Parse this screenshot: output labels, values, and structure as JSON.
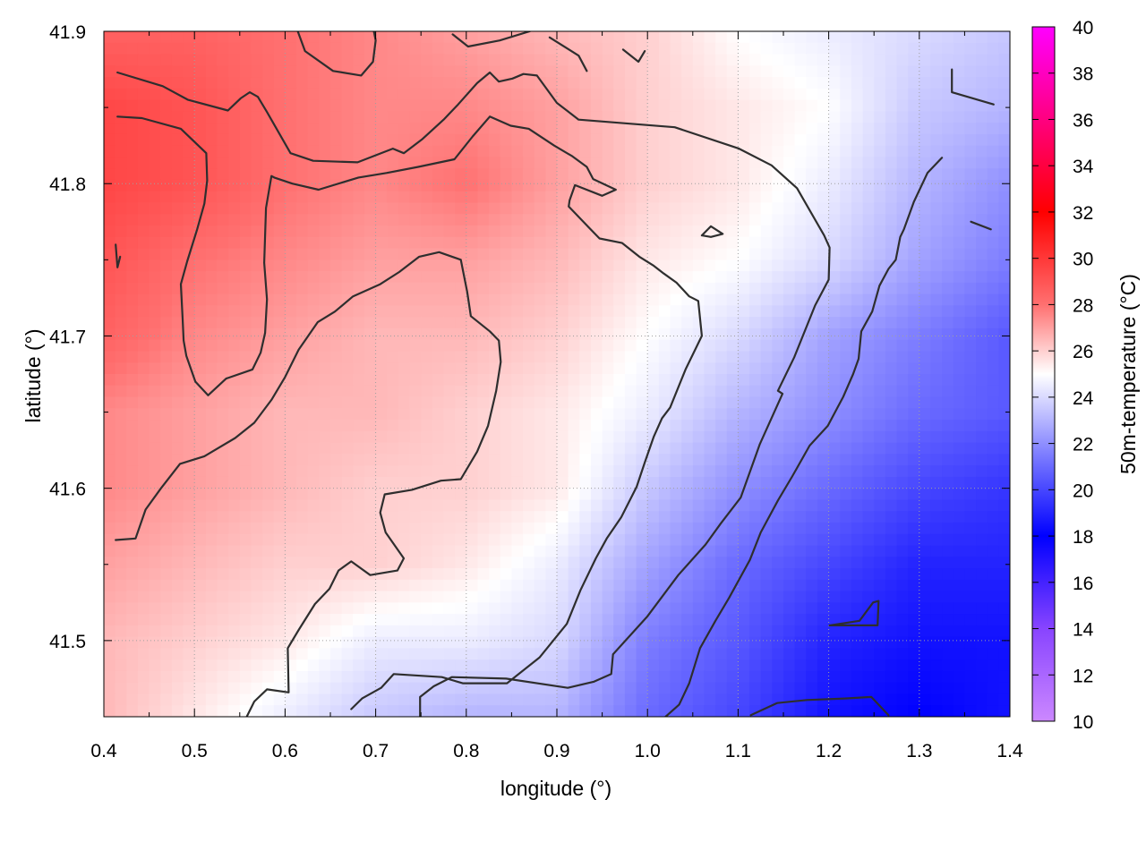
{
  "chart_data": {
    "type": "heatmap",
    "xlabel": "longitude (°)",
    "ylabel": "latitude (°)",
    "colorbar_label": "50m-temperature (°C)",
    "xlim": [
      0.4,
      1.4
    ],
    "ylim": [
      41.45,
      41.9
    ],
    "x_ticks": [
      0.4,
      0.5,
      0.6,
      0.7,
      0.8,
      0.9,
      1.0,
      1.1,
      1.2,
      1.3,
      1.4
    ],
    "x_tick_labels": [
      "0.4",
      "0.5",
      "0.6",
      "0.7",
      "0.8",
      "0.9",
      "1.0",
      "1.1",
      "1.2",
      "1.3",
      "1.4"
    ],
    "y_ticks": [
      41.5,
      41.6,
      41.7,
      41.8,
      41.9
    ],
    "y_tick_labels": [
      "41.5",
      "41.6",
      "41.7",
      "41.8",
      "41.9"
    ],
    "colorbar_range": [
      10,
      40
    ],
    "colorbar_ticks": [
      10,
      12,
      14,
      16,
      18,
      20,
      22,
      24,
      26,
      28,
      30,
      32,
      34,
      36,
      38,
      40
    ],
    "colorbar_tick_labels": [
      "10",
      "12",
      "14",
      "16",
      "18",
      "20",
      "22",
      "24",
      "26",
      "28",
      "30",
      "32",
      "34",
      "36",
      "38",
      "40"
    ],
    "colormap": [
      {
        "value": 10,
        "color": "#cc88ff"
      },
      {
        "value": 14,
        "color": "#8844ff"
      },
      {
        "value": 18,
        "color": "#0000ff"
      },
      {
        "value": 21,
        "color": "#6a6aff"
      },
      {
        "value": 25,
        "color": "#ffffff"
      },
      {
        "value": 28,
        "color": "#ff7070"
      },
      {
        "value": 32,
        "color": "#ff0000"
      },
      {
        "value": 36,
        "color": "#ff0080"
      },
      {
        "value": 40,
        "color": "#ff00ff"
      }
    ],
    "grid": true,
    "field": {
      "x": [
        0.4,
        0.5,
        0.6,
        0.7,
        0.8,
        0.9,
        1.0,
        1.1,
        1.2,
        1.3,
        1.4
      ],
      "y": [
        41.9,
        41.85,
        41.8,
        41.75,
        41.7,
        41.65,
        41.6,
        41.55,
        41.5,
        41.45
      ],
      "values": [
        [
          28.5,
          28.5,
          28.0,
          27.5,
          27.0,
          26.5,
          26.0,
          25.0,
          24.5,
          24.0,
          23.5
        ],
        [
          29.5,
          29.0,
          28.0,
          27.5,
          27.5,
          27.0,
          26.0,
          25.5,
          25.0,
          23.5,
          23.0
        ],
        [
          29.5,
          29.0,
          28.0,
          27.5,
          28.0,
          27.0,
          26.0,
          25.5,
          24.5,
          23.0,
          22.0
        ],
        [
          29.0,
          28.0,
          27.5,
          27.0,
          27.0,
          26.5,
          25.5,
          25.0,
          24.0,
          22.5,
          21.5
        ],
        [
          28.5,
          27.5,
          27.0,
          26.5,
          26.5,
          26.0,
          25.0,
          24.0,
          22.5,
          21.5,
          20.5
        ],
        [
          27.5,
          27.0,
          26.5,
          26.5,
          26.0,
          25.5,
          24.5,
          23.0,
          22.0,
          21.0,
          20.5
        ],
        [
          27.5,
          27.0,
          26.5,
          26.0,
          26.0,
          25.5,
          23.5,
          22.0,
          21.0,
          20.0,
          19.5
        ],
        [
          27.0,
          26.5,
          26.0,
          26.0,
          25.5,
          24.5,
          22.5,
          21.0,
          20.0,
          19.0,
          19.0
        ],
        [
          26.5,
          26.0,
          25.5,
          24.5,
          24.5,
          24.0,
          21.5,
          20.5,
          19.0,
          18.5,
          18.5
        ],
        [
          26.5,
          25.5,
          24.5,
          23.5,
          23.0,
          23.0,
          21.0,
          20.0,
          18.5,
          18.0,
          18.5
        ]
      ]
    },
    "contours": [
      [
        [
          0.415,
          41.873
        ],
        [
          0.465,
          41.864
        ],
        [
          0.493,
          41.855
        ],
        [
          0.537,
          41.848
        ],
        [
          0.551,
          41.856
        ],
        [
          0.561,
          41.86
        ],
        [
          0.57,
          41.857
        ],
        [
          0.58,
          41.847
        ],
        [
          0.606,
          41.82
        ],
        [
          0.631,
          41.815
        ],
        [
          0.68,
          41.814
        ],
        [
          0.719,
          41.823
        ],
        [
          0.731,
          41.82
        ],
        [
          0.751,
          41.829
        ],
        [
          0.775,
          41.842
        ],
        [
          0.791,
          41.852
        ],
        [
          0.812,
          41.866
        ],
        [
          0.826,
          41.873
        ],
        [
          0.836,
          41.867
        ],
        [
          0.851,
          41.869
        ],
        [
          0.863,
          41.872
        ],
        [
          0.878,
          41.871
        ],
        [
          0.9,
          41.853
        ],
        [
          0.924,
          41.842
        ],
        [
          1.03,
          41.837
        ],
        [
          1.101,
          41.823
        ],
        [
          1.137,
          41.812
        ],
        [
          1.165,
          41.797
        ],
        [
          1.195,
          41.766
        ],
        [
          1.201,
          41.758
        ],
        [
          1.2,
          41.737
        ],
        [
          1.185,
          41.72
        ],
        [
          1.162,
          41.686
        ],
        [
          1.144,
          41.664
        ],
        [
          1.149,
          41.662
        ],
        [
          1.124,
          41.629
        ],
        [
          1.103,
          41.594
        ],
        [
          1.081,
          41.577
        ],
        [
          1.064,
          41.563
        ],
        [
          1.034,
          41.543
        ],
        [
          1.0,
          41.516
        ],
        [
          0.962,
          41.491
        ],
        [
          0.96,
          41.478
        ],
        [
          0.941,
          41.473
        ],
        [
          0.912,
          41.469
        ],
        [
          0.844,
          41.475
        ],
        [
          0.784,
          41.476
        ],
        [
          0.764,
          41.47
        ],
        [
          0.749,
          41.463
        ],
        [
          0.749,
          41.447
        ]
      ],
      [
        [
          0.415,
          41.844
        ],
        [
          0.442,
          41.843
        ],
        [
          0.485,
          41.836
        ],
        [
          0.513,
          41.82
        ],
        [
          0.514,
          41.802
        ],
        [
          0.511,
          41.787
        ],
        [
          0.503,
          41.77
        ],
        [
          0.492,
          41.749
        ],
        [
          0.485,
          41.734
        ],
        [
          0.487,
          41.711
        ],
        [
          0.488,
          41.697
        ],
        [
          0.491,
          41.687
        ],
        [
          0.501,
          41.67
        ],
        [
          0.515,
          41.661
        ],
        [
          0.535,
          41.672
        ],
        [
          0.564,
          41.678
        ],
        [
          0.573,
          41.689
        ],
        [
          0.578,
          41.702
        ],
        [
          0.58,
          41.724
        ],
        [
          0.577,
          41.748
        ],
        [
          0.579,
          41.784
        ],
        [
          0.585,
          41.805
        ],
        [
          0.588,
          41.804
        ],
        [
          0.608,
          41.8
        ],
        [
          0.637,
          41.796
        ],
        [
          0.681,
          41.804
        ],
        [
          0.712,
          41.807
        ],
        [
          0.747,
          41.811
        ],
        [
          0.787,
          41.816
        ],
        [
          0.807,
          41.831
        ],
        [
          0.826,
          41.844
        ],
        [
          0.849,
          41.838
        ],
        [
          0.869,
          41.836
        ],
        [
          0.897,
          41.825
        ],
        [
          0.917,
          41.818
        ],
        [
          0.933,
          41.811
        ],
        [
          0.94,
          41.803
        ],
        [
          0.965,
          41.796
        ],
        [
          0.95,
          41.792
        ],
        [
          0.92,
          41.799
        ],
        [
          0.914,
          41.789
        ],
        [
          0.913,
          41.785
        ],
        [
          0.934,
          41.772
        ],
        [
          0.947,
          41.764
        ],
        [
          0.972,
          41.761
        ],
        [
          0.991,
          41.752
        ],
        [
          1.007,
          41.746
        ],
        [
          1.018,
          41.741
        ],
        [
          1.032,
          41.735
        ],
        [
          1.046,
          41.726
        ],
        [
          1.056,
          41.723
        ],
        [
          1.06,
          41.7
        ],
        [
          1.042,
          41.678
        ],
        [
          1.025,
          41.653
        ],
        [
          1.016,
          41.646
        ],
        [
          1.007,
          41.634
        ],
        [
          0.997,
          41.617
        ],
        [
          0.988,
          41.601
        ],
        [
          0.971,
          41.581
        ],
        [
          0.955,
          41.567
        ],
        [
          0.943,
          41.554
        ],
        [
          0.926,
          41.533
        ],
        [
          0.911,
          41.511
        ],
        [
          0.881,
          41.489
        ],
        [
          0.845,
          41.472
        ],
        [
          0.796,
          41.472
        ],
        [
          0.773,
          41.476
        ],
        [
          0.72,
          41.478
        ],
        [
          0.706,
          41.469
        ],
        [
          0.685,
          41.462
        ],
        [
          0.673,
          41.455
        ]
      ],
      [
        [
          0.413,
          41.566
        ],
        [
          0.435,
          41.567
        ],
        [
          0.446,
          41.586
        ],
        [
          0.463,
          41.6
        ],
        [
          0.484,
          41.616
        ],
        [
          0.511,
          41.621
        ],
        [
          0.545,
          41.633
        ],
        [
          0.566,
          41.643
        ],
        [
          0.585,
          41.658
        ],
        [
          0.6,
          41.673
        ],
        [
          0.615,
          41.691
        ],
        [
          0.636,
          41.709
        ],
        [
          0.655,
          41.716
        ],
        [
          0.675,
          41.726
        ],
        [
          0.705,
          41.734
        ],
        [
          0.726,
          41.742
        ],
        [
          0.748,
          41.752
        ],
        [
          0.77,
          41.755
        ],
        [
          0.794,
          41.75
        ],
        [
          0.801,
          41.729
        ],
        [
          0.805,
          41.713
        ],
        [
          0.826,
          41.703
        ],
        [
          0.836,
          41.697
        ],
        [
          0.838,
          41.683
        ],
        [
          0.833,
          41.664
        ],
        [
          0.824,
          41.641
        ],
        [
          0.812,
          41.624
        ],
        [
          0.794,
          41.606
        ],
        [
          0.772,
          41.605
        ],
        [
          0.74,
          41.599
        ],
        [
          0.71,
          41.596
        ],
        [
          0.705,
          41.584
        ],
        [
          0.711,
          41.571
        ],
        [
          0.731,
          41.554
        ],
        [
          0.724,
          41.546
        ],
        [
          0.694,
          41.543
        ],
        [
          0.673,
          41.552
        ],
        [
          0.659,
          41.546
        ],
        [
          0.649,
          41.534
        ],
        [
          0.633,
          41.524
        ],
        [
          0.615,
          41.507
        ],
        [
          0.603,
          41.495
        ],
        [
          0.604,
          41.466
        ],
        [
          0.58,
          41.468
        ],
        [
          0.566,
          41.46
        ],
        [
          0.556,
          41.448
        ]
      ],
      [
        [
          1.06,
          41.766
        ],
        [
          1.07,
          41.772
        ],
        [
          1.083,
          41.767
        ],
        [
          1.07,
          41.765
        ],
        [
          1.06,
          41.766
        ]
      ],
      [
        [
          1.02,
          41.45
        ],
        [
          1.035,
          41.458
        ],
        [
          1.046,
          41.472
        ],
        [
          1.058,
          41.495
        ],
        [
          1.075,
          41.513
        ],
        [
          1.09,
          41.528
        ],
        [
          1.113,
          41.553
        ],
        [
          1.125,
          41.571
        ],
        [
          1.144,
          41.592
        ],
        [
          1.16,
          41.608
        ],
        [
          1.179,
          41.628
        ],
        [
          1.199,
          41.641
        ],
        [
          1.216,
          41.66
        ],
        [
          1.227,
          41.675
        ],
        [
          1.233,
          41.685
        ],
        [
          1.236,
          41.703
        ],
        [
          1.248,
          41.716
        ],
        [
          1.256,
          41.733
        ],
        [
          1.266,
          41.744
        ],
        [
          1.274,
          41.75
        ],
        [
          1.279,
          41.765
        ],
        [
          1.283,
          41.77
        ],
        [
          1.294,
          41.788
        ],
        [
          1.309,
          41.807
        ],
        [
          1.325,
          41.817
        ]
      ],
      [
        [
          1.114,
          41.451
        ],
        [
          1.143,
          41.459
        ],
        [
          1.176,
          41.461
        ],
        [
          1.218,
          41.462
        ],
        [
          1.247,
          41.463
        ],
        [
          1.266,
          41.451
        ]
      ],
      [
        [
          1.201,
          41.51
        ],
        [
          1.234,
          41.513
        ],
        [
          1.249,
          41.525
        ],
        [
          1.255,
          41.526
        ],
        [
          1.254,
          41.51
        ],
        [
          1.233,
          41.51
        ],
        [
          1.201,
          41.51
        ]
      ],
      [
        [
          1.336,
          41.875
        ],
        [
          1.336,
          41.86
        ],
        [
          1.382,
          41.852
        ]
      ],
      [
        [
          1.357,
          41.775
        ],
        [
          1.379,
          41.77
        ]
      ],
      [
        [
          0.614,
          41.9
        ],
        [
          0.622,
          41.887
        ],
        [
          0.653,
          41.874
        ],
        [
          0.684,
          41.871
        ],
        [
          0.697,
          41.88
        ],
        [
          0.7,
          41.894
        ],
        [
          0.698,
          41.9
        ]
      ],
      [
        [
          0.785,
          41.898
        ],
        [
          0.802,
          41.89
        ],
        [
          0.837,
          41.894
        ],
        [
          0.87,
          41.9
        ]
      ],
      [
        [
          0.892,
          41.896
        ],
        [
          0.924,
          41.884
        ],
        [
          0.933,
          41.874
        ]
      ],
      [
        [
          0.973,
          41.888
        ],
        [
          0.99,
          41.88
        ],
        [
          0.997,
          41.887
        ]
      ],
      [
        [
          0.413,
          41.76
        ],
        [
          0.415,
          41.745
        ],
        [
          0.418,
          41.752
        ]
      ]
    ]
  }
}
